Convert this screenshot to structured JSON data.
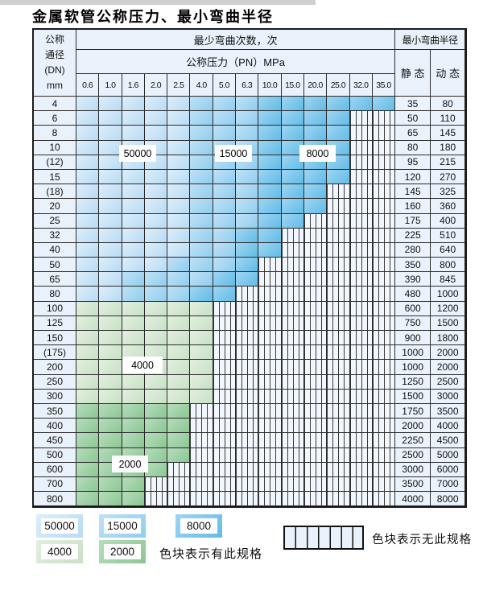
{
  "page": {
    "title": "金属软管公称压力、最小弯曲半径"
  },
  "table": {
    "header": {
      "dn_lines": [
        "公称",
        "通径",
        "(DN)",
        "mm"
      ],
      "cycles_title": "最少弯曲次数，次",
      "radius_title": "最小弯曲半径",
      "pressure_title": "公称压力（PN）MPa",
      "static_label": "静 态",
      "dynamic_label": "动 态",
      "pressures": [
        "0.6",
        "1.0",
        "1.6",
        "2.0",
        "2.5",
        "4.0",
        "5.0",
        "6.3",
        "10.0",
        "15.0",
        "20.0",
        "25.0",
        "32.0",
        "35.0"
      ]
    },
    "rows": [
      {
        "dn": "4",
        "bands": [
          {
            "end": 4,
            "shade": "b1"
          },
          {
            "end": 7,
            "shade": "b2"
          },
          {
            "end": 13,
            "shade": "b3"
          }
        ],
        "static": "35",
        "dynamic": "80"
      },
      {
        "dn": "6",
        "bands": [
          {
            "end": 4,
            "shade": "b1"
          },
          {
            "end": 7,
            "shade": "b2"
          },
          {
            "end": 11,
            "shade": "b3"
          }
        ],
        "static": "50",
        "dynamic": "110"
      },
      {
        "dn": "8",
        "bands": [
          {
            "end": 4,
            "shade": "b1"
          },
          {
            "end": 7,
            "shade": "b2"
          },
          {
            "end": 11,
            "shade": "b3"
          }
        ],
        "static": "65",
        "dynamic": "145"
      },
      {
        "dn": "10",
        "bands": [
          {
            "end": 4,
            "shade": "b1"
          },
          {
            "end": 7,
            "shade": "b2"
          },
          {
            "end": 11,
            "shade": "b3"
          }
        ],
        "static": "80",
        "dynamic": "180"
      },
      {
        "dn": "(12)",
        "bands": [
          {
            "end": 4,
            "shade": "b1"
          },
          {
            "end": 7,
            "shade": "b2"
          },
          {
            "end": 11,
            "shade": "b3"
          }
        ],
        "static": "95",
        "dynamic": "215"
      },
      {
        "dn": "15",
        "bands": [
          {
            "end": 4,
            "shade": "b1"
          },
          {
            "end": 7,
            "shade": "b2"
          },
          {
            "end": 11,
            "shade": "b3"
          }
        ],
        "static": "120",
        "dynamic": "270"
      },
      {
        "dn": "(18)",
        "bands": [
          {
            "end": 4,
            "shade": "b1"
          },
          {
            "end": 7,
            "shade": "b2"
          },
          {
            "end": 10,
            "shade": "b3"
          }
        ],
        "static": "145",
        "dynamic": "325"
      },
      {
        "dn": "20",
        "bands": [
          {
            "end": 4,
            "shade": "b1"
          },
          {
            "end": 7,
            "shade": "b2"
          },
          {
            "end": 10,
            "shade": "b3"
          }
        ],
        "static": "160",
        "dynamic": "360"
      },
      {
        "dn": "25",
        "bands": [
          {
            "end": 4,
            "shade": "b1"
          },
          {
            "end": 7,
            "shade": "b2"
          },
          {
            "end": 9,
            "shade": "b3"
          }
        ],
        "static": "175",
        "dynamic": "400"
      },
      {
        "dn": "32",
        "bands": [
          {
            "end": 4,
            "shade": "b1"
          },
          {
            "end": 6,
            "shade": "b2"
          },
          {
            "end": 8,
            "shade": "b3"
          }
        ],
        "static": "225",
        "dynamic": "510"
      },
      {
        "dn": "40",
        "bands": [
          {
            "end": 4,
            "shade": "b1"
          },
          {
            "end": 6,
            "shade": "b2"
          },
          {
            "end": 8,
            "shade": "b3"
          }
        ],
        "static": "280",
        "dynamic": "640"
      },
      {
        "dn": "50",
        "bands": [
          {
            "end": 3,
            "shade": "b1"
          },
          {
            "end": 6,
            "shade": "b2"
          },
          {
            "end": 7,
            "shade": "b3"
          }
        ],
        "static": "350",
        "dynamic": "800"
      },
      {
        "dn": "65",
        "bands": [
          {
            "end": 1,
            "shade": "b1"
          },
          {
            "end": 5,
            "shade": "b2"
          },
          {
            "end": 7,
            "shade": "b3"
          }
        ],
        "static": "390",
        "dynamic": "845"
      },
      {
        "dn": "80",
        "bands": [
          {
            "end": 1,
            "shade": "b1"
          },
          {
            "end": 4,
            "shade": "b2"
          },
          {
            "end": 6,
            "shade": "b3"
          }
        ],
        "static": "480",
        "dynamic": "1000"
      },
      {
        "dn": "100",
        "bands": [
          {
            "end": 5,
            "shade": "g1"
          }
        ],
        "static": "600",
        "dynamic": "1200"
      },
      {
        "dn": "125",
        "bands": [
          {
            "end": 5,
            "shade": "g1"
          }
        ],
        "static": "750",
        "dynamic": "1500"
      },
      {
        "dn": "150",
        "bands": [
          {
            "end": 5,
            "shade": "g1"
          }
        ],
        "static": "900",
        "dynamic": "1800"
      },
      {
        "dn": "(175)",
        "bands": [
          {
            "end": 5,
            "shade": "g1"
          }
        ],
        "static": "1000",
        "dynamic": "2000"
      },
      {
        "dn": "200",
        "bands": [
          {
            "end": 5,
            "shade": "g1"
          }
        ],
        "static": "1000",
        "dynamic": "2000"
      },
      {
        "dn": "250",
        "bands": [
          {
            "end": 5,
            "shade": "g1"
          }
        ],
        "static": "1250",
        "dynamic": "2500"
      },
      {
        "dn": "300",
        "bands": [
          {
            "end": 5,
            "shade": "g1"
          }
        ],
        "static": "1500",
        "dynamic": "3000"
      },
      {
        "dn": "350",
        "bands": [
          {
            "end": 4,
            "shade": "g2"
          }
        ],
        "static": "1750",
        "dynamic": "3500"
      },
      {
        "dn": "400",
        "bands": [
          {
            "end": 4,
            "shade": "g2"
          }
        ],
        "static": "2000",
        "dynamic": "4000"
      },
      {
        "dn": "450",
        "bands": [
          {
            "end": 4,
            "shade": "g2"
          }
        ],
        "static": "2250",
        "dynamic": "4500"
      },
      {
        "dn": "500",
        "bands": [
          {
            "end": 4,
            "shade": "g2"
          }
        ],
        "static": "2500",
        "dynamic": "5000"
      },
      {
        "dn": "600",
        "bands": [
          {
            "end": 3,
            "shade": "g2"
          }
        ],
        "static": "3000",
        "dynamic": "6000"
      },
      {
        "dn": "700",
        "bands": [
          {
            "end": 2,
            "shade": "g2"
          }
        ],
        "static": "3500",
        "dynamic": "7000"
      },
      {
        "dn": "800",
        "bands": [
          {
            "end": 2,
            "shade": "g2"
          }
        ],
        "static": "4000",
        "dynamic": "8000"
      }
    ],
    "overlay_labels": [
      "50000",
      "15000",
      "8000",
      "4000",
      "2000"
    ]
  },
  "legend": {
    "swatches": [
      {
        "label": "50000",
        "shade": "b1"
      },
      {
        "label": "15000",
        "shade": "b2"
      },
      {
        "label": "8000",
        "shade": "b3"
      },
      {
        "label": "4000",
        "shade": "g1"
      },
      {
        "label": "2000",
        "shade": "g2"
      }
    ],
    "has_spec_text": "色块表示有此规格",
    "no_spec_text": "色块表示无此规格"
  },
  "colors": {
    "b1": [
      "#ddeefb",
      "#b8dbf3"
    ],
    "b2": [
      "#c0e2f6",
      "#90cdee"
    ],
    "b3": [
      "#9ed6f2",
      "#63bbe7"
    ],
    "g1": [
      "#e3efe0",
      "#c8e1c5"
    ],
    "g2": [
      "#b7ddbc",
      "#8bc794"
    ]
  }
}
